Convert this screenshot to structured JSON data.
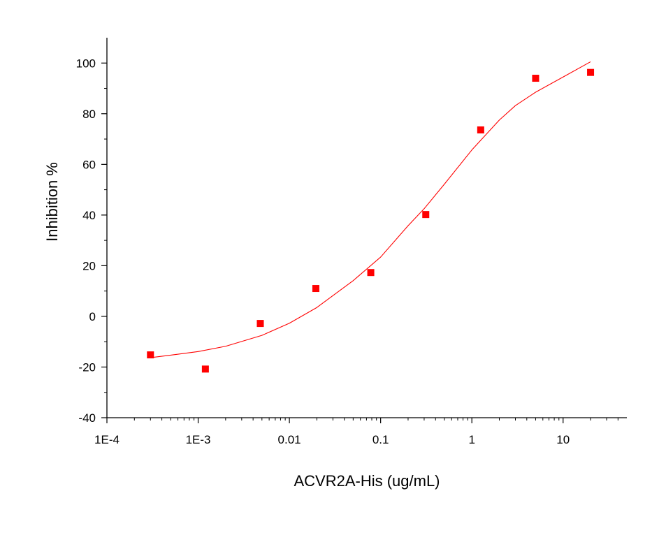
{
  "chart_data": {
    "type": "scatter",
    "title": "",
    "xlabel": "ACVR2A-His (ug/mL)",
    "ylabel": "Inhibition %",
    "x_scale": "log10",
    "xlim": [
      0.0001,
      50
    ],
    "ylim": [
      -40,
      110
    ],
    "x_ticks": [
      0.0001,
      0.001,
      0.01,
      0.1,
      1,
      10
    ],
    "x_tick_labels": [
      "1E-4",
      "1E-3",
      "0.01",
      "0.1",
      "1",
      "10"
    ],
    "y_ticks": [
      -40,
      -20,
      0,
      20,
      40,
      60,
      80,
      100
    ],
    "y_tick_labels": [
      "-40",
      "-20",
      "0",
      "20",
      "40",
      "60",
      "80",
      "100"
    ],
    "grid": false,
    "legend": "none",
    "series": [
      {
        "kind": "points",
        "marker": "square",
        "color": "#ff0000",
        "x": [
          0.0003,
          0.0012,
          0.0048,
          0.0195,
          0.078,
          0.3125,
          1.25,
          5,
          20
        ],
        "y": [
          -15.2,
          -20.8,
          -2.8,
          11,
          17.3,
          40.2,
          73.6,
          94,
          96.3
        ]
      },
      {
        "kind": "fit",
        "color": "#ff0000",
        "x": [
          0.0003,
          0.0005,
          0.001,
          0.002,
          0.005,
          0.01,
          0.02,
          0.05,
          0.1,
          0.2,
          0.3,
          0.5,
          1,
          2,
          3,
          5,
          10,
          20
        ],
        "y": [
          -16.3,
          -15.3,
          -13.9,
          -11.8,
          -7.5,
          -2.7,
          3.5,
          14.1,
          23.4,
          35.8,
          42.5,
          52.2,
          65.7,
          77.5,
          83.2,
          88.5,
          94.5,
          100.5
        ]
      }
    ]
  }
}
